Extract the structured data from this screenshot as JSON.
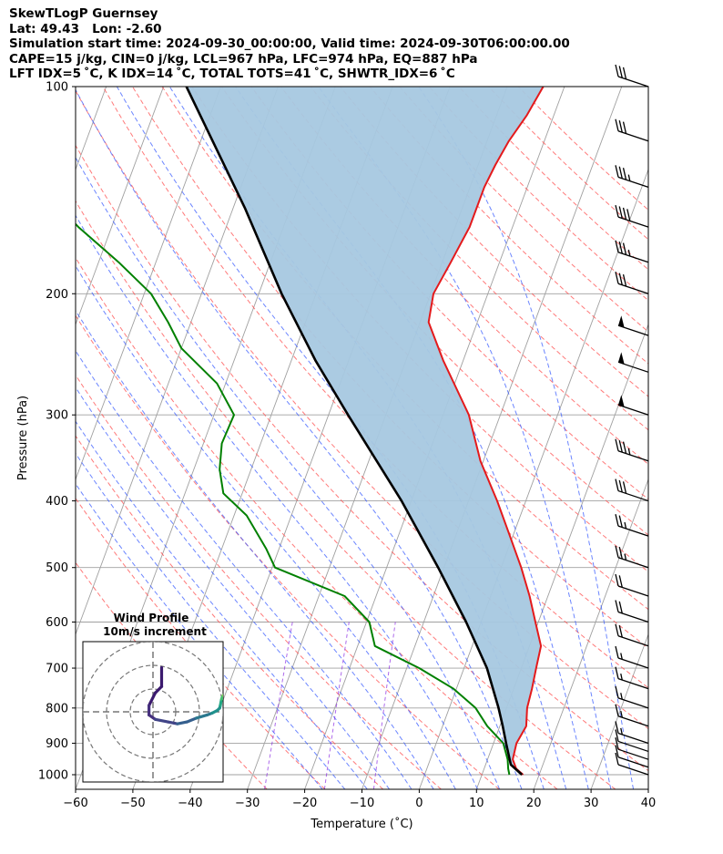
{
  "header": {
    "line1": "SkewTLogP Guernsey",
    "line2": "Lat: 49.43   Lon: -2.60",
    "line3": "Simulation start time: 2024-09-30_00:00:00, Valid time: 2024-09-30T06:00:00.00",
    "line4": "CAPE=15 j/kg, CIN=0 j/kg, LCL=967 hPa, LFC=974 hPa, EQ=887 hPa",
    "line5": "LFT IDX=5 ˚C, K IDX=14 ˚C, TOTAL TOTS=41 ˚C, SHWTR_IDX=6 ˚C"
  },
  "colors": {
    "temperature": "#e41a1c",
    "dewpoint": "#008000",
    "parcel": "#000000",
    "cape_fill": "#a6c8e0",
    "dry_adiabat": "#ff4d4d",
    "moist_adiabat": "#3a5cff",
    "mixing_ratio": "#8a2be2",
    "isotherm": "#a0a0a0"
  },
  "chart_data": {
    "type": "skewt",
    "xlabel": "Temperature (˚C)",
    "ylabel": "Pressure (hPa)",
    "xlim": [
      -60,
      40
    ],
    "ylim": [
      1050,
      100
    ],
    "x_ticks": [
      "−60",
      "−50",
      "−40",
      "−30",
      "−20",
      "−10",
      "0",
      "10",
      "20",
      "30",
      "40"
    ],
    "y_ticks": [
      100,
      200,
      300,
      400,
      500,
      600,
      700,
      800,
      900,
      1000
    ],
    "series": [
      {
        "key": "temperature",
        "points": [
          [
            1000,
            17.2
          ],
          [
            980,
            15.6
          ],
          [
            950,
            14.4
          ],
          [
            900,
            14.0
          ],
          [
            850,
            14.6
          ],
          [
            800,
            13.6
          ],
          [
            750,
            13.2
          ],
          [
            700,
            12.6
          ],
          [
            650,
            12.0
          ],
          [
            600,
            9.5
          ],
          [
            550,
            6.8
          ],
          [
            500,
            3.5
          ],
          [
            450,
            -0.5
          ],
          [
            400,
            -5.0
          ],
          [
            350,
            -10.5
          ],
          [
            300,
            -15.5
          ],
          [
            250,
            -23.5
          ],
          [
            220,
            -28.5
          ],
          [
            200,
            -29.5
          ],
          [
            180,
            -28.5
          ],
          [
            160,
            -27.5
          ],
          [
            140,
            -27.5
          ],
          [
            130,
            -27.0
          ],
          [
            120,
            -26.2
          ],
          [
            110,
            -24.7
          ],
          [
            100,
            -23.7
          ]
        ]
      },
      {
        "key": "dewpoint",
        "points": [
          [
            1000,
            14.8
          ],
          [
            980,
            14.2
          ],
          [
            950,
            13.5
          ],
          [
            900,
            11.7
          ],
          [
            850,
            7.8
          ],
          [
            800,
            4.6
          ],
          [
            750,
            -0.5
          ],
          [
            700,
            -7.8
          ],
          [
            650,
            -17.0
          ],
          [
            600,
            -19.5
          ],
          [
            550,
            -25.5
          ],
          [
            500,
            -39.5
          ],
          [
            470,
            -42.2
          ],
          [
            420,
            -47.8
          ],
          [
            390,
            -53.3
          ],
          [
            360,
            -55.5
          ],
          [
            330,
            -56.8
          ],
          [
            300,
            -56.5
          ],
          [
            270,
            -61.5
          ],
          [
            240,
            -70.0
          ],
          [
            220,
            -74.0
          ],
          [
            200,
            -78.8
          ],
          [
            180,
            -86.5
          ],
          [
            160,
            -95.8
          ],
          [
            140,
            -105.0
          ],
          [
            120,
            -111.8
          ],
          [
            100,
            -118.8
          ]
        ]
      },
      {
        "key": "parcel",
        "points": [
          [
            1000,
            17.0
          ],
          [
            967,
            14.4
          ],
          [
            900,
            12.2
          ],
          [
            850,
            10.5
          ],
          [
            800,
            8.6
          ],
          [
            700,
            4.0
          ],
          [
            600,
            -2.6
          ],
          [
            500,
            -11.0
          ],
          [
            400,
            -21.7
          ],
          [
            300,
            -36.6
          ],
          [
            250,
            -45.8
          ],
          [
            200,
            -56.0
          ],
          [
            150,
            -68.0
          ],
          [
            100,
            -86.0
          ]
        ]
      }
    ],
    "wind_barbs": {
      "pressures": [
        100,
        120,
        140,
        160,
        180,
        200,
        230,
        260,
        300,
        350,
        400,
        450,
        500,
        550,
        600,
        650,
        700,
        750,
        800,
        850,
        900,
        925,
        950,
        975,
        1000
      ],
      "speeds_kt": [
        30,
        30,
        35,
        40,
        35,
        30,
        50,
        50,
        50,
        35,
        30,
        25,
        25,
        20,
        20,
        20,
        15,
        15,
        15,
        15,
        15,
        10,
        10,
        10,
        10
      ]
    },
    "inset": {
      "title_line1": "Wind Profile",
      "title_line2": "10m/s increment",
      "hodograph": [
        [
          -7,
          -7
        ],
        [
          -7,
          -4
        ],
        [
          -8,
          -3
        ],
        [
          -9,
          -1
        ],
        [
          -9,
          0.5
        ],
        [
          -8,
          1.2
        ],
        [
          -6,
          1.6
        ],
        [
          -5,
          1.8
        ],
        [
          -4.5,
          1.9
        ],
        [
          -3,
          1.6
        ],
        [
          -1.5,
          1.0
        ],
        [
          0.2,
          0.5
        ],
        [
          1,
          0.2
        ],
        [
          1.8,
          -0.2
        ],
        [
          2.2,
          -0.6
        ],
        [
          2.3,
          -1.0
        ],
        [
          2.4,
          -1.5
        ],
        [
          2.5,
          -2.0
        ],
        [
          2.6,
          -2.3
        ],
        [
          2.8,
          -2.6
        ],
        [
          3.0,
          -2.8
        ],
        [
          3.4,
          -3.0
        ],
        [
          3.9,
          -3.1
        ],
        [
          4.7,
          -3.3
        ],
        [
          5.8,
          -3.7
        ],
        [
          7.0,
          -4.0
        ],
        [
          8.6,
          -4.1
        ]
      ]
    }
  }
}
